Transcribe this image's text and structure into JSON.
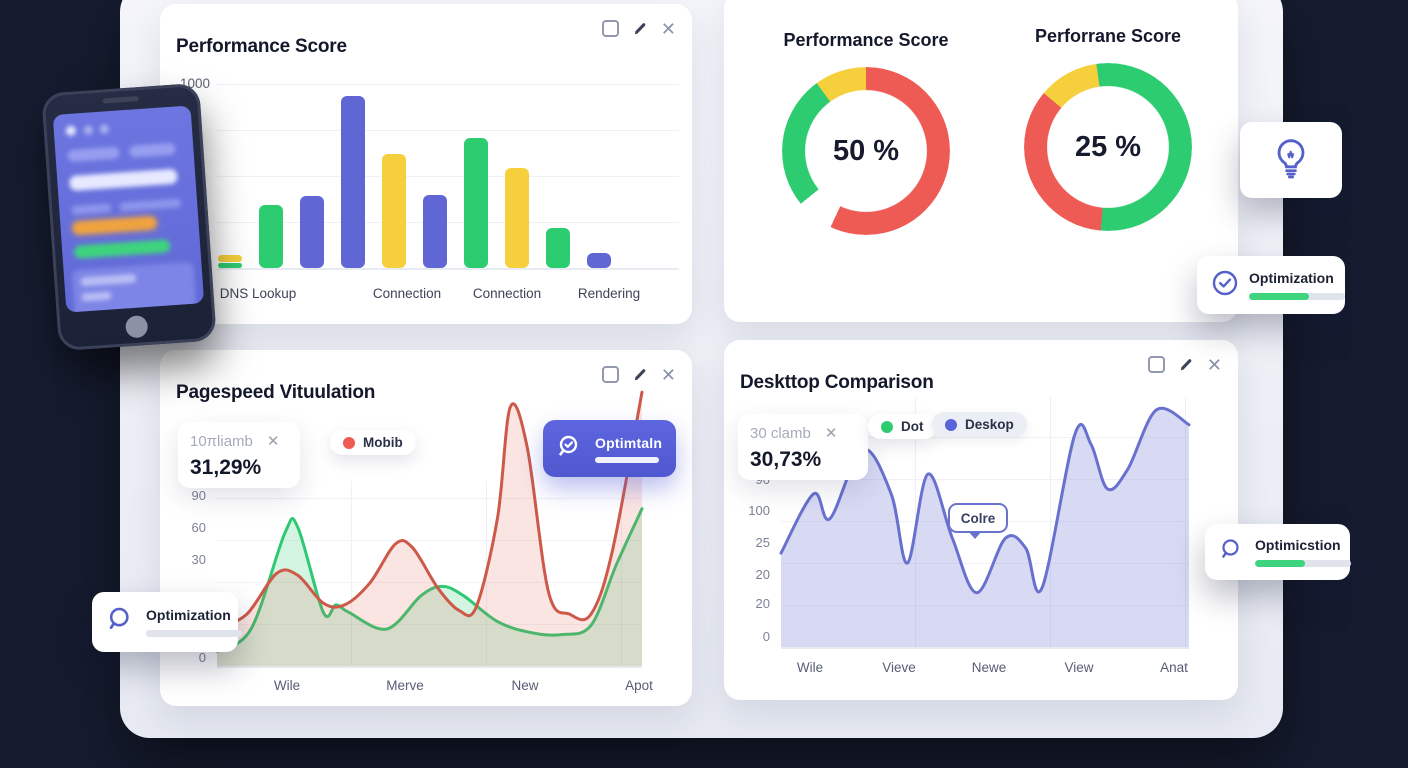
{
  "theme": {
    "background": "#161c30",
    "panel": "#eef0f7",
    "card": "#ffffff",
    "indigo": "#5a63d8",
    "green": "#2ecc71",
    "yellow": "#f5d03c",
    "red": "#ee5b55",
    "text": "#14182b",
    "muted": "#8b90a3"
  },
  "glyphs": {
    "close": "✕"
  },
  "icons": [
    "restore-icon",
    "edit-icon",
    "close-icon",
    "search-icon",
    "search-check-icon",
    "check-circle-icon",
    "lightbulb-icon"
  ],
  "cards": {
    "pagespeed": {
      "stat": {
        "label": "10πliamb",
        "value": "31,29%"
      },
      "button": {
        "label": "Optimtaln"
      }
    },
    "desktop": {
      "stat": {
        "label": "30 clamb",
        "value": "30,73%"
      }
    }
  },
  "widgets": {
    "opt_top": {
      "label": "Optimization",
      "progress": 0.62
    },
    "opt_right": {
      "label": "Optimicstion",
      "progress": 0.52
    },
    "opt_left": {
      "label": "Optimization",
      "progress": 0
    }
  },
  "chart_data": [
    {
      "id": "waterfall",
      "type": "bar",
      "title": "Performance Score",
      "xlabel": "",
      "ylabel": "",
      "ylim": [
        0,
        1000
      ],
      "y_ticks": [
        "1000"
      ],
      "grid": true,
      "categories": [
        "DNS Lookup",
        "Connection",
        "Connection",
        "Rendering"
      ],
      "bars": [
        {
          "segments": [
            [
              "#2ecc71",
              25
            ],
            [
              "#f5d03c",
              40
            ]
          ]
        },
        {
          "segments": [
            [
              "#2ecc71",
              340
            ]
          ]
        },
        {
          "segments": [
            [
              "#6166d5",
              385
            ]
          ]
        },
        {
          "segments": [
            [
              "#6166d5",
              925
            ]
          ]
        },
        {
          "segments": [
            [
              "#f5d03c",
              615
            ]
          ]
        },
        {
          "segments": [
            [
              "#6166d5",
              395
            ]
          ]
        },
        {
          "segments": [
            [
              "#2ecc71",
              700
            ]
          ]
        },
        {
          "segments": [
            [
              "#f5d03c",
              540
            ]
          ]
        },
        {
          "segments": [
            [
              "#2ecc71",
              215
            ]
          ]
        },
        {
          "segments": [
            [
              "#6166d5",
              80
            ]
          ]
        }
      ]
    },
    {
      "id": "gauge-1",
      "type": "pie",
      "title": "Performance Score",
      "center_label": "50 %",
      "value_pct": 50,
      "slices": [
        {
          "name": "red",
          "color": "#ee5b55",
          "deg": 205
        },
        {
          "name": "gap",
          "color": "transparent",
          "deg": 26
        },
        {
          "name": "green",
          "color": "#2ecc71",
          "deg": 93
        },
        {
          "name": "yellow",
          "color": "#f5d03c",
          "deg": 36
        }
      ]
    },
    {
      "id": "gauge-2",
      "type": "pie",
      "title": "Perforrane Score",
      "center_label": "25 %",
      "value_pct": 25,
      "slices": [
        {
          "name": "green",
          "color": "#2ecc71",
          "deg": 185
        },
        {
          "name": "red",
          "color": "#ee5b55",
          "deg": 125
        },
        {
          "name": "yellow",
          "color": "#f5d03c",
          "deg": 42
        },
        {
          "name": "green2",
          "color": "#2ecc71",
          "deg": 8
        }
      ]
    },
    {
      "id": "pagespeed",
      "type": "area",
      "title": "Pagespeed Vituulation",
      "units": "percent-of-plot-height",
      "grid": true,
      "y_ticks": [
        "90",
        "60",
        "30",
        "0"
      ],
      "x_ticks": [
        "Wile",
        "Merve",
        "New",
        "Apot"
      ],
      "legend": [
        "Mobib"
      ],
      "series": [
        {
          "name": "green",
          "color": "#2fc873",
          "fill": "rgba(46,204,113,0.20)",
          "points": [
            [
              0,
              8
            ],
            [
              8,
              20
            ],
            [
              16,
              72
            ],
            [
              19,
              75
            ],
            [
              25,
              29
            ],
            [
              28,
              33
            ],
            [
              31,
              29
            ],
            [
              40,
              20
            ],
            [
              48,
              38
            ],
            [
              53,
              43
            ],
            [
              58,
              38
            ],
            [
              66,
              24
            ],
            [
              74,
              18
            ],
            [
              81,
              17
            ],
            [
              88,
              22
            ],
            [
              94,
              55
            ],
            [
              100,
              85
            ]
          ]
        },
        {
          "name": "red",
          "color": "#cd5a49",
          "fill": "rgba(231,92,76,0.16)",
          "points": [
            [
              0,
              20
            ],
            [
              7,
              28
            ],
            [
              14,
              50
            ],
            [
              19,
              49
            ],
            [
              25,
              34
            ],
            [
              30,
              33
            ],
            [
              36,
              45
            ],
            [
              42,
              66
            ],
            [
              46,
              64
            ],
            [
              52,
              42
            ],
            [
              57,
              30
            ],
            [
              61,
              32
            ],
            [
              66,
              80
            ],
            [
              69,
              140
            ],
            [
              73,
              118
            ],
            [
              78,
              40
            ],
            [
              83,
              28
            ],
            [
              88,
              28
            ],
            [
              93,
              62
            ],
            [
              100,
              148
            ]
          ]
        }
      ]
    },
    {
      "id": "desktop",
      "type": "area",
      "title": "Deskttop Comparison",
      "units": "percent-of-plot-height",
      "grid": true,
      "y_ticks": [
        "90",
        "100",
        "25",
        "20",
        "20",
        "0"
      ],
      "x_ticks": [
        "Wile",
        "Vieve",
        "Newe",
        "View",
        "Anat"
      ],
      "legend": [
        "Dot",
        "Deskop"
      ],
      "legend_colors": [
        "#2ecc71",
        "#5a63d8"
      ],
      "tooltip": "Colre",
      "series": [
        {
          "name": "desktop",
          "color": "#6971ce",
          "fill": "rgba(103,111,211,0.26)",
          "points": [
            [
              0,
              38
            ],
            [
              8,
              62
            ],
            [
              12,
              52
            ],
            [
              20,
              80
            ],
            [
              27,
              62
            ],
            [
              31,
              34
            ],
            [
              36,
              70
            ],
            [
              42,
              44
            ],
            [
              48,
              22
            ],
            [
              55,
              44
            ],
            [
              60,
              40
            ],
            [
              64,
              24
            ],
            [
              72,
              86
            ],
            [
              76,
              82
            ],
            [
              80,
              64
            ],
            [
              85,
              72
            ],
            [
              92,
              96
            ],
            [
              100,
              90
            ]
          ]
        }
      ]
    }
  ]
}
